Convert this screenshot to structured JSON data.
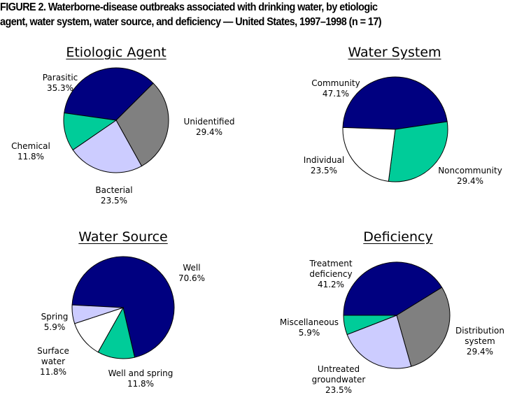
{
  "figure_title_line1": "FIGURE 2.  Waterborne-disease outbreaks associated with drinking water, by etiologic",
  "figure_title_line2": "agent, water system, water source, and deficiency — United States, 1997–1998 (n = 17)",
  "chart_data": [
    {
      "type": "pie",
      "title": "Etiologic Agent",
      "start_angle_deg": 278,
      "slices": [
        {
          "label": "Parasitic",
          "value": 35.3,
          "value_label": "35.3%",
          "color": "#000080"
        },
        {
          "label": "Unidentified",
          "value": 29.4,
          "value_label": "29.4%",
          "color": "#808080"
        },
        {
          "label": "Bacterial",
          "value": 23.5,
          "value_label": "23.5%",
          "color": "#CCCCFF"
        },
        {
          "label": "Chemical",
          "value": 11.8,
          "value_label": "11.8%",
          "color": "#00CC99"
        }
      ]
    },
    {
      "type": "pie",
      "title": "Water System",
      "start_angle_deg": 272,
      "slices": [
        {
          "label": "Community",
          "value": 47.1,
          "value_label": "47.1%",
          "color": "#000080"
        },
        {
          "label": "Noncommunity",
          "value": 29.4,
          "value_label": "29.4%",
          "color": "#00CC99"
        },
        {
          "label": "Individual",
          "value": 23.5,
          "value_label": "23.5%",
          "color": "#FFFFFF"
        }
      ]
    },
    {
      "type": "pie",
      "title": "Water Source",
      "start_angle_deg": 273,
      "slices": [
        {
          "label": "Well",
          "value": 70.6,
          "value_label": "70.6%",
          "color": "#000080"
        },
        {
          "label": "Well and spring",
          "value": 11.8,
          "value_label": "11.8%",
          "color": "#00CC99"
        },
        {
          "label": "Surface\nwater",
          "value": 11.8,
          "value_label": "11.8%",
          "color": "#FFFFFF"
        },
        {
          "label": "Spring",
          "value": 5.9,
          "value_label": "5.9%",
          "color": "#CCCCFF"
        }
      ]
    },
    {
      "type": "pie",
      "title": "Deficiency",
      "start_angle_deg": 270,
      "slices": [
        {
          "label": "Treatment\ndeficiency",
          "value": 41.2,
          "value_label": "41.2%",
          "color": "#000080"
        },
        {
          "label": "Distribution\nsystem",
          "value": 29.4,
          "value_label": "29.4%",
          "color": "#808080"
        },
        {
          "label": "Untreated\ngroundwater",
          "value": 23.5,
          "value_label": "23.5%",
          "color": "#CCCCFF"
        },
        {
          "label": "Miscellaneous",
          "value": 5.9,
          "value_label": "5.9%",
          "color": "#00CC99"
        }
      ]
    }
  ]
}
